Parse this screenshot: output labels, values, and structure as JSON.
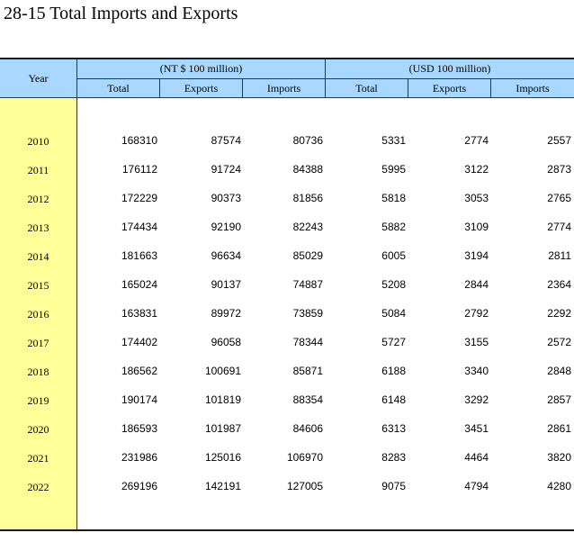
{
  "title": "28-15  Total Imports and Exports",
  "header": {
    "year_label": "Year",
    "group_ntd": "(NT $ 100 million)",
    "group_usd": "(USD 100 million)",
    "sub_labels": [
      "Total",
      "Exports",
      "Imports",
      "Total",
      "Exports",
      "Imports"
    ]
  },
  "colors": {
    "header_bg": "#a8d8ff",
    "year_column_bg": "#ffff99"
  },
  "rows": [
    {
      "year": "2010",
      "values": [
        "168310",
        "87574",
        "80736",
        "5331",
        "2774",
        "2557"
      ]
    },
    {
      "year": "2011",
      "values": [
        "176112",
        "91724",
        "84388",
        "5995",
        "3122",
        "2873"
      ]
    },
    {
      "year": "2012",
      "values": [
        "172229",
        "90373",
        "81856",
        "5818",
        "3053",
        "2765"
      ]
    },
    {
      "year": "2013",
      "values": [
        "174434",
        "92190",
        "82243",
        "5882",
        "3109",
        "2774"
      ]
    },
    {
      "year": "2014",
      "values": [
        "181663",
        "96634",
        "85029",
        "6005",
        "3194",
        "2811"
      ]
    },
    {
      "year": "2015",
      "values": [
        "165024",
        "90137",
        "74887",
        "5208",
        "2844",
        "2364"
      ]
    },
    {
      "year": "2016",
      "values": [
        "163831",
        "89972",
        "73859",
        "5084",
        "2792",
        "2292"
      ]
    },
    {
      "year": "2017",
      "values": [
        "174402",
        "96058",
        "78344",
        "5727",
        "3155",
        "2572"
      ]
    },
    {
      "year": "2018",
      "values": [
        "186562",
        "100691",
        "85871",
        "6188",
        "3340",
        "2848"
      ]
    },
    {
      "year": "2019",
      "values": [
        "190174",
        "101819",
        "88354",
        "6148",
        "3292",
        "2857"
      ]
    },
    {
      "year": "2020",
      "values": [
        "186593",
        "101987",
        "84606",
        "6313",
        "3451",
        "2861"
      ]
    },
    {
      "year": "2021",
      "values": [
        "231986",
        "125016",
        "106970",
        "8283",
        "4464",
        "3820"
      ]
    },
    {
      "year": "2022",
      "values": [
        "269196",
        "142191",
        "127005",
        "9075",
        "4794",
        "4280"
      ]
    }
  ]
}
